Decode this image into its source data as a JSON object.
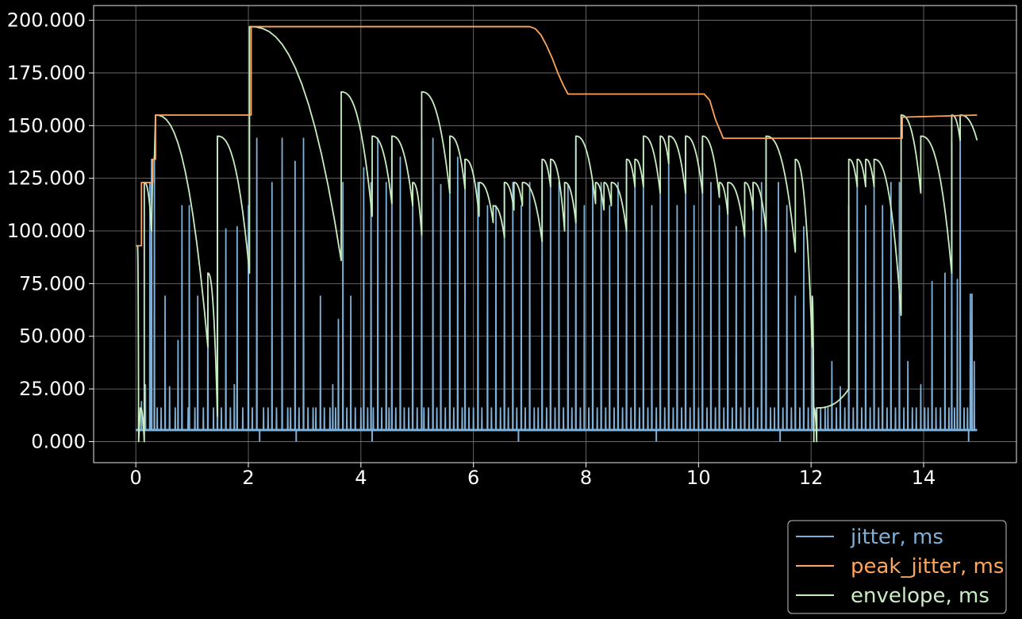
{
  "chart_data": {
    "type": "line",
    "title": "",
    "xlabel": "",
    "ylabel": "",
    "xlim": [
      -0.75,
      15.65
    ],
    "ylim": [
      -10,
      207
    ],
    "x_ticks": [
      0,
      2,
      4,
      6,
      8,
      10,
      12,
      14
    ],
    "x_tick_labels": [
      "0",
      "2",
      "4",
      "6",
      "8",
      "10",
      "12",
      "14"
    ],
    "y_ticks": [
      0,
      25,
      50,
      75,
      100,
      125,
      150,
      175,
      200
    ],
    "y_tick_labels": [
      "0.000",
      "25.000",
      "50.000",
      "75.000",
      "100.000",
      "125.000",
      "150.000",
      "175.000",
      "200.000"
    ],
    "grid": true,
    "legend_position": "bottom-right",
    "series": [
      {
        "name": "jitter, ms",
        "color": "#7fb0d8",
        "baseline": 5.5,
        "min_dips": [
          2.2,
          2.85,
          4.2,
          6.8,
          9.25,
          11.45,
          14.8
        ],
        "spikes": [
          [
            0.05,
            16
          ],
          [
            0.1,
            19
          ],
          [
            0.17,
            27
          ],
          [
            0.25,
            123
          ],
          [
            0.28,
            134
          ],
          [
            0.33,
            135
          ],
          [
            0.38,
            16
          ],
          [
            0.45,
            16
          ],
          [
            0.52,
            69
          ],
          [
            0.6,
            26
          ],
          [
            0.7,
            16
          ],
          [
            0.75,
            48
          ],
          [
            0.82,
            112
          ],
          [
            0.93,
            16
          ],
          [
            0.95,
            112
          ],
          [
            1.05,
            16
          ],
          [
            1.1,
            69
          ],
          [
            1.2,
            16
          ],
          [
            1.28,
            69
          ],
          [
            1.38,
            16
          ],
          [
            1.45,
            144
          ],
          [
            1.52,
            16
          ],
          [
            1.6,
            101
          ],
          [
            1.68,
            16
          ],
          [
            1.75,
            27
          ],
          [
            1.8,
            102
          ],
          [
            1.9,
            16
          ],
          [
            2.0,
            112
          ],
          [
            2.07,
            16
          ],
          [
            2.15,
            144
          ],
          [
            2.27,
            16
          ],
          [
            2.35,
            16
          ],
          [
            2.42,
            123
          ],
          [
            2.5,
            16
          ],
          [
            2.6,
            144
          ],
          [
            2.7,
            16
          ],
          [
            2.75,
            16
          ],
          [
            2.83,
            133
          ],
          [
            2.9,
            16
          ],
          [
            2.98,
            144
          ],
          [
            3.06,
            16
          ],
          [
            3.15,
            16
          ],
          [
            3.2,
            16
          ],
          [
            3.28,
            69
          ],
          [
            3.35,
            16
          ],
          [
            3.45,
            16
          ],
          [
            3.5,
            27
          ],
          [
            3.55,
            16
          ],
          [
            3.6,
            58
          ],
          [
            3.68,
            123
          ],
          [
            3.75,
            16
          ],
          [
            3.82,
            69
          ],
          [
            3.9,
            16
          ],
          [
            4.0,
            16
          ],
          [
            4.05,
            130
          ],
          [
            4.12,
            16
          ],
          [
            4.18,
            123
          ],
          [
            4.22,
            16
          ],
          [
            4.3,
            144
          ],
          [
            4.37,
            16
          ],
          [
            4.45,
            123
          ],
          [
            4.5,
            16
          ],
          [
            4.55,
            144
          ],
          [
            4.62,
            16
          ],
          [
            4.7,
            135
          ],
          [
            4.77,
            16
          ],
          [
            4.85,
            16
          ],
          [
            4.92,
            123
          ],
          [
            5.0,
            16
          ],
          [
            5.08,
            143
          ],
          [
            5.12,
            16
          ],
          [
            5.2,
            16
          ],
          [
            5.28,
            144
          ],
          [
            5.35,
            16
          ],
          [
            5.42,
            122
          ],
          [
            5.5,
            16
          ],
          [
            5.58,
            145
          ],
          [
            5.65,
            16
          ],
          [
            5.72,
            135
          ],
          [
            5.8,
            16
          ],
          [
            5.85,
            134
          ],
          [
            5.92,
            16
          ],
          [
            6.0,
            16
          ],
          [
            6.08,
            123
          ],
          [
            6.15,
            16
          ],
          [
            6.25,
            112
          ],
          [
            6.32,
            16
          ],
          [
            6.4,
            112
          ],
          [
            6.48,
            16
          ],
          [
            6.55,
            123
          ],
          [
            6.62,
            16
          ],
          [
            6.7,
            123
          ],
          [
            6.77,
            16
          ],
          [
            6.85,
            112
          ],
          [
            6.92,
            16
          ],
          [
            7.0,
            123
          ],
          [
            7.08,
            16
          ],
          [
            7.15,
            16
          ],
          [
            7.22,
            131
          ],
          [
            7.3,
            16
          ],
          [
            7.37,
            133
          ],
          [
            7.45,
            16
          ],
          [
            7.52,
            123
          ],
          [
            7.6,
            16
          ],
          [
            7.68,
            122
          ],
          [
            7.75,
            16
          ],
          [
            7.82,
            144
          ],
          [
            7.9,
            16
          ],
          [
            7.97,
            112
          ],
          [
            8.05,
            16
          ],
          [
            8.12,
            123
          ],
          [
            8.2,
            16
          ],
          [
            8.27,
            123
          ],
          [
            8.35,
            16
          ],
          [
            8.42,
            112
          ],
          [
            8.5,
            16
          ],
          [
            8.57,
            123
          ],
          [
            8.65,
            16
          ],
          [
            8.72,
            133
          ],
          [
            8.8,
            16
          ],
          [
            8.87,
            133
          ],
          [
            8.95,
            16
          ],
          [
            9.02,
            144
          ],
          [
            9.1,
            16
          ],
          [
            9.17,
            112
          ],
          [
            9.25,
            16
          ],
          [
            9.32,
            123
          ],
          [
            9.4,
            16
          ],
          [
            9.47,
            145
          ],
          [
            9.55,
            16
          ],
          [
            9.62,
            112
          ],
          [
            9.7,
            16
          ],
          [
            9.77,
            144
          ],
          [
            9.85,
            16
          ],
          [
            9.92,
            112
          ],
          [
            10.0,
            16
          ],
          [
            10.07,
            144
          ],
          [
            10.15,
            16
          ],
          [
            10.22,
            123
          ],
          [
            10.3,
            16
          ],
          [
            10.37,
            112
          ],
          [
            10.45,
            16
          ],
          [
            10.52,
            123
          ],
          [
            10.6,
            16
          ],
          [
            10.67,
            102
          ],
          [
            10.75,
            16
          ],
          [
            10.82,
            112
          ],
          [
            10.9,
            16
          ],
          [
            10.97,
            123
          ],
          [
            11.05,
            16
          ],
          [
            11.12,
            123
          ],
          [
            11.2,
            144
          ],
          [
            11.28,
            16
          ],
          [
            11.35,
            16
          ],
          [
            11.42,
            123
          ],
          [
            11.5,
            16
          ],
          [
            11.57,
            112
          ],
          [
            11.65,
            16
          ],
          [
            11.72,
            69
          ],
          [
            11.8,
            16
          ],
          [
            11.87,
            102
          ],
          [
            11.95,
            16
          ],
          [
            12.02,
            69
          ],
          [
            12.1,
            16
          ],
          [
            12.17,
            16
          ],
          [
            12.25,
            16
          ],
          [
            12.3,
            16
          ],
          [
            12.37,
            38
          ],
          [
            12.45,
            16
          ],
          [
            12.52,
            26
          ],
          [
            12.6,
            16
          ],
          [
            12.67,
            112
          ],
          [
            12.75,
            16
          ],
          [
            12.82,
            123
          ],
          [
            12.9,
            16
          ],
          [
            12.97,
            112
          ],
          [
            13.05,
            16
          ],
          [
            13.12,
            123
          ],
          [
            13.2,
            16
          ],
          [
            13.27,
            112
          ],
          [
            13.35,
            16
          ],
          [
            13.42,
            123
          ],
          [
            13.5,
            16
          ],
          [
            13.57,
            123
          ],
          [
            13.65,
            16
          ],
          [
            13.72,
            38
          ],
          [
            13.8,
            16
          ],
          [
            13.87,
            16
          ],
          [
            13.95,
            27
          ],
          [
            14.02,
            16
          ],
          [
            14.08,
            16
          ],
          [
            14.15,
            76
          ],
          [
            14.22,
            16
          ],
          [
            14.3,
            16
          ],
          [
            14.38,
            80
          ],
          [
            14.45,
            16
          ],
          [
            14.5,
            142
          ],
          [
            14.55,
            16
          ],
          [
            14.6,
            77
          ],
          [
            14.65,
            154
          ],
          [
            14.72,
            16
          ],
          [
            14.78,
            16
          ],
          [
            14.83,
            70
          ],
          [
            14.86,
            70
          ],
          [
            14.9,
            38
          ]
        ]
      },
      {
        "name": "peak_jitter, ms",
        "color": "#ffa65a",
        "points": [
          [
            0.0,
            93
          ],
          [
            0.1,
            93
          ],
          [
            0.1,
            123
          ],
          [
            0.3,
            123
          ],
          [
            0.3,
            134
          ],
          [
            0.35,
            134
          ],
          [
            0.35,
            155
          ],
          [
            2.05,
            155
          ],
          [
            2.05,
            197
          ],
          [
            7.0,
            197
          ],
          [
            7.1,
            196
          ],
          [
            7.2,
            193
          ],
          [
            7.3,
            188
          ],
          [
            7.4,
            182
          ],
          [
            7.5,
            175
          ],
          [
            7.6,
            169
          ],
          [
            7.68,
            165
          ],
          [
            10.1,
            165
          ],
          [
            10.2,
            162
          ],
          [
            10.3,
            153
          ],
          [
            10.44,
            144
          ],
          [
            13.62,
            144
          ],
          [
            13.62,
            154
          ],
          [
            14.95,
            155
          ]
        ]
      },
      {
        "name": "envelope, ms",
        "color": "#c8eec0",
        "decay_exponent": 2.5,
        "arcs": [
          [
            0.03,
            93,
            0.05,
            0
          ],
          [
            0.08,
            16,
            0.15,
            0
          ],
          [
            0.15,
            123,
            0.28,
            100
          ],
          [
            0.3,
            134,
            0.33,
            134
          ],
          [
            0.35,
            155,
            1.28,
            45
          ],
          [
            1.28,
            80,
            1.45,
            12
          ],
          [
            1.45,
            145,
            2.02,
            80
          ],
          [
            2.02,
            197,
            3.65,
            86
          ],
          [
            3.65,
            166,
            4.2,
            107
          ],
          [
            4.2,
            145,
            4.55,
            113
          ],
          [
            4.55,
            145,
            4.92,
            112
          ],
          [
            4.92,
            123,
            5.08,
            98
          ],
          [
            5.08,
            166,
            5.58,
            118
          ],
          [
            5.58,
            145,
            5.85,
            120
          ],
          [
            5.85,
            134,
            6.1,
            107
          ],
          [
            6.1,
            123,
            6.35,
            104
          ],
          [
            6.35,
            112,
            6.55,
            97
          ],
          [
            6.55,
            123,
            6.72,
            110
          ],
          [
            6.72,
            123,
            6.87,
            112
          ],
          [
            6.87,
            123,
            7.22,
            95
          ],
          [
            7.22,
            134,
            7.37,
            121
          ],
          [
            7.37,
            134,
            7.62,
            100
          ],
          [
            7.62,
            123,
            7.82,
            104
          ],
          [
            7.82,
            145,
            8.17,
            113
          ],
          [
            8.17,
            123,
            8.32,
            110
          ],
          [
            8.32,
            123,
            8.45,
            112
          ],
          [
            8.45,
            123,
            8.72,
            100
          ],
          [
            8.72,
            134,
            8.87,
            121
          ],
          [
            8.87,
            134,
            9.02,
            121
          ],
          [
            9.02,
            145,
            9.32,
            118
          ],
          [
            9.32,
            145,
            9.47,
            132
          ],
          [
            9.47,
            145,
            9.77,
            118
          ],
          [
            9.77,
            145,
            10.07,
            118
          ],
          [
            10.07,
            145,
            10.37,
            116
          ],
          [
            10.37,
            123,
            10.52,
            108
          ],
          [
            10.52,
            123,
            10.82,
            97
          ],
          [
            10.82,
            123,
            10.97,
            110
          ],
          [
            10.97,
            123,
            11.2,
            100
          ],
          [
            11.2,
            145,
            11.72,
            90
          ],
          [
            11.72,
            134,
            12.02,
            45
          ],
          [
            12.02,
            69,
            12.05,
            0
          ],
          [
            12.05,
            16,
            12.1,
            0
          ],
          [
            12.1,
            16,
            12.67,
            25
          ],
          [
            12.67,
            134,
            12.82,
            121
          ],
          [
            12.82,
            134,
            12.97,
            121
          ],
          [
            12.97,
            134,
            13.12,
            121
          ],
          [
            13.12,
            134,
            13.6,
            60
          ],
          [
            13.6,
            155,
            13.95,
            118
          ],
          [
            13.95,
            145,
            14.5,
            80
          ],
          [
            14.5,
            155,
            14.65,
            143
          ],
          [
            14.65,
            155,
            14.95,
            143
          ]
        ]
      }
    ]
  }
}
